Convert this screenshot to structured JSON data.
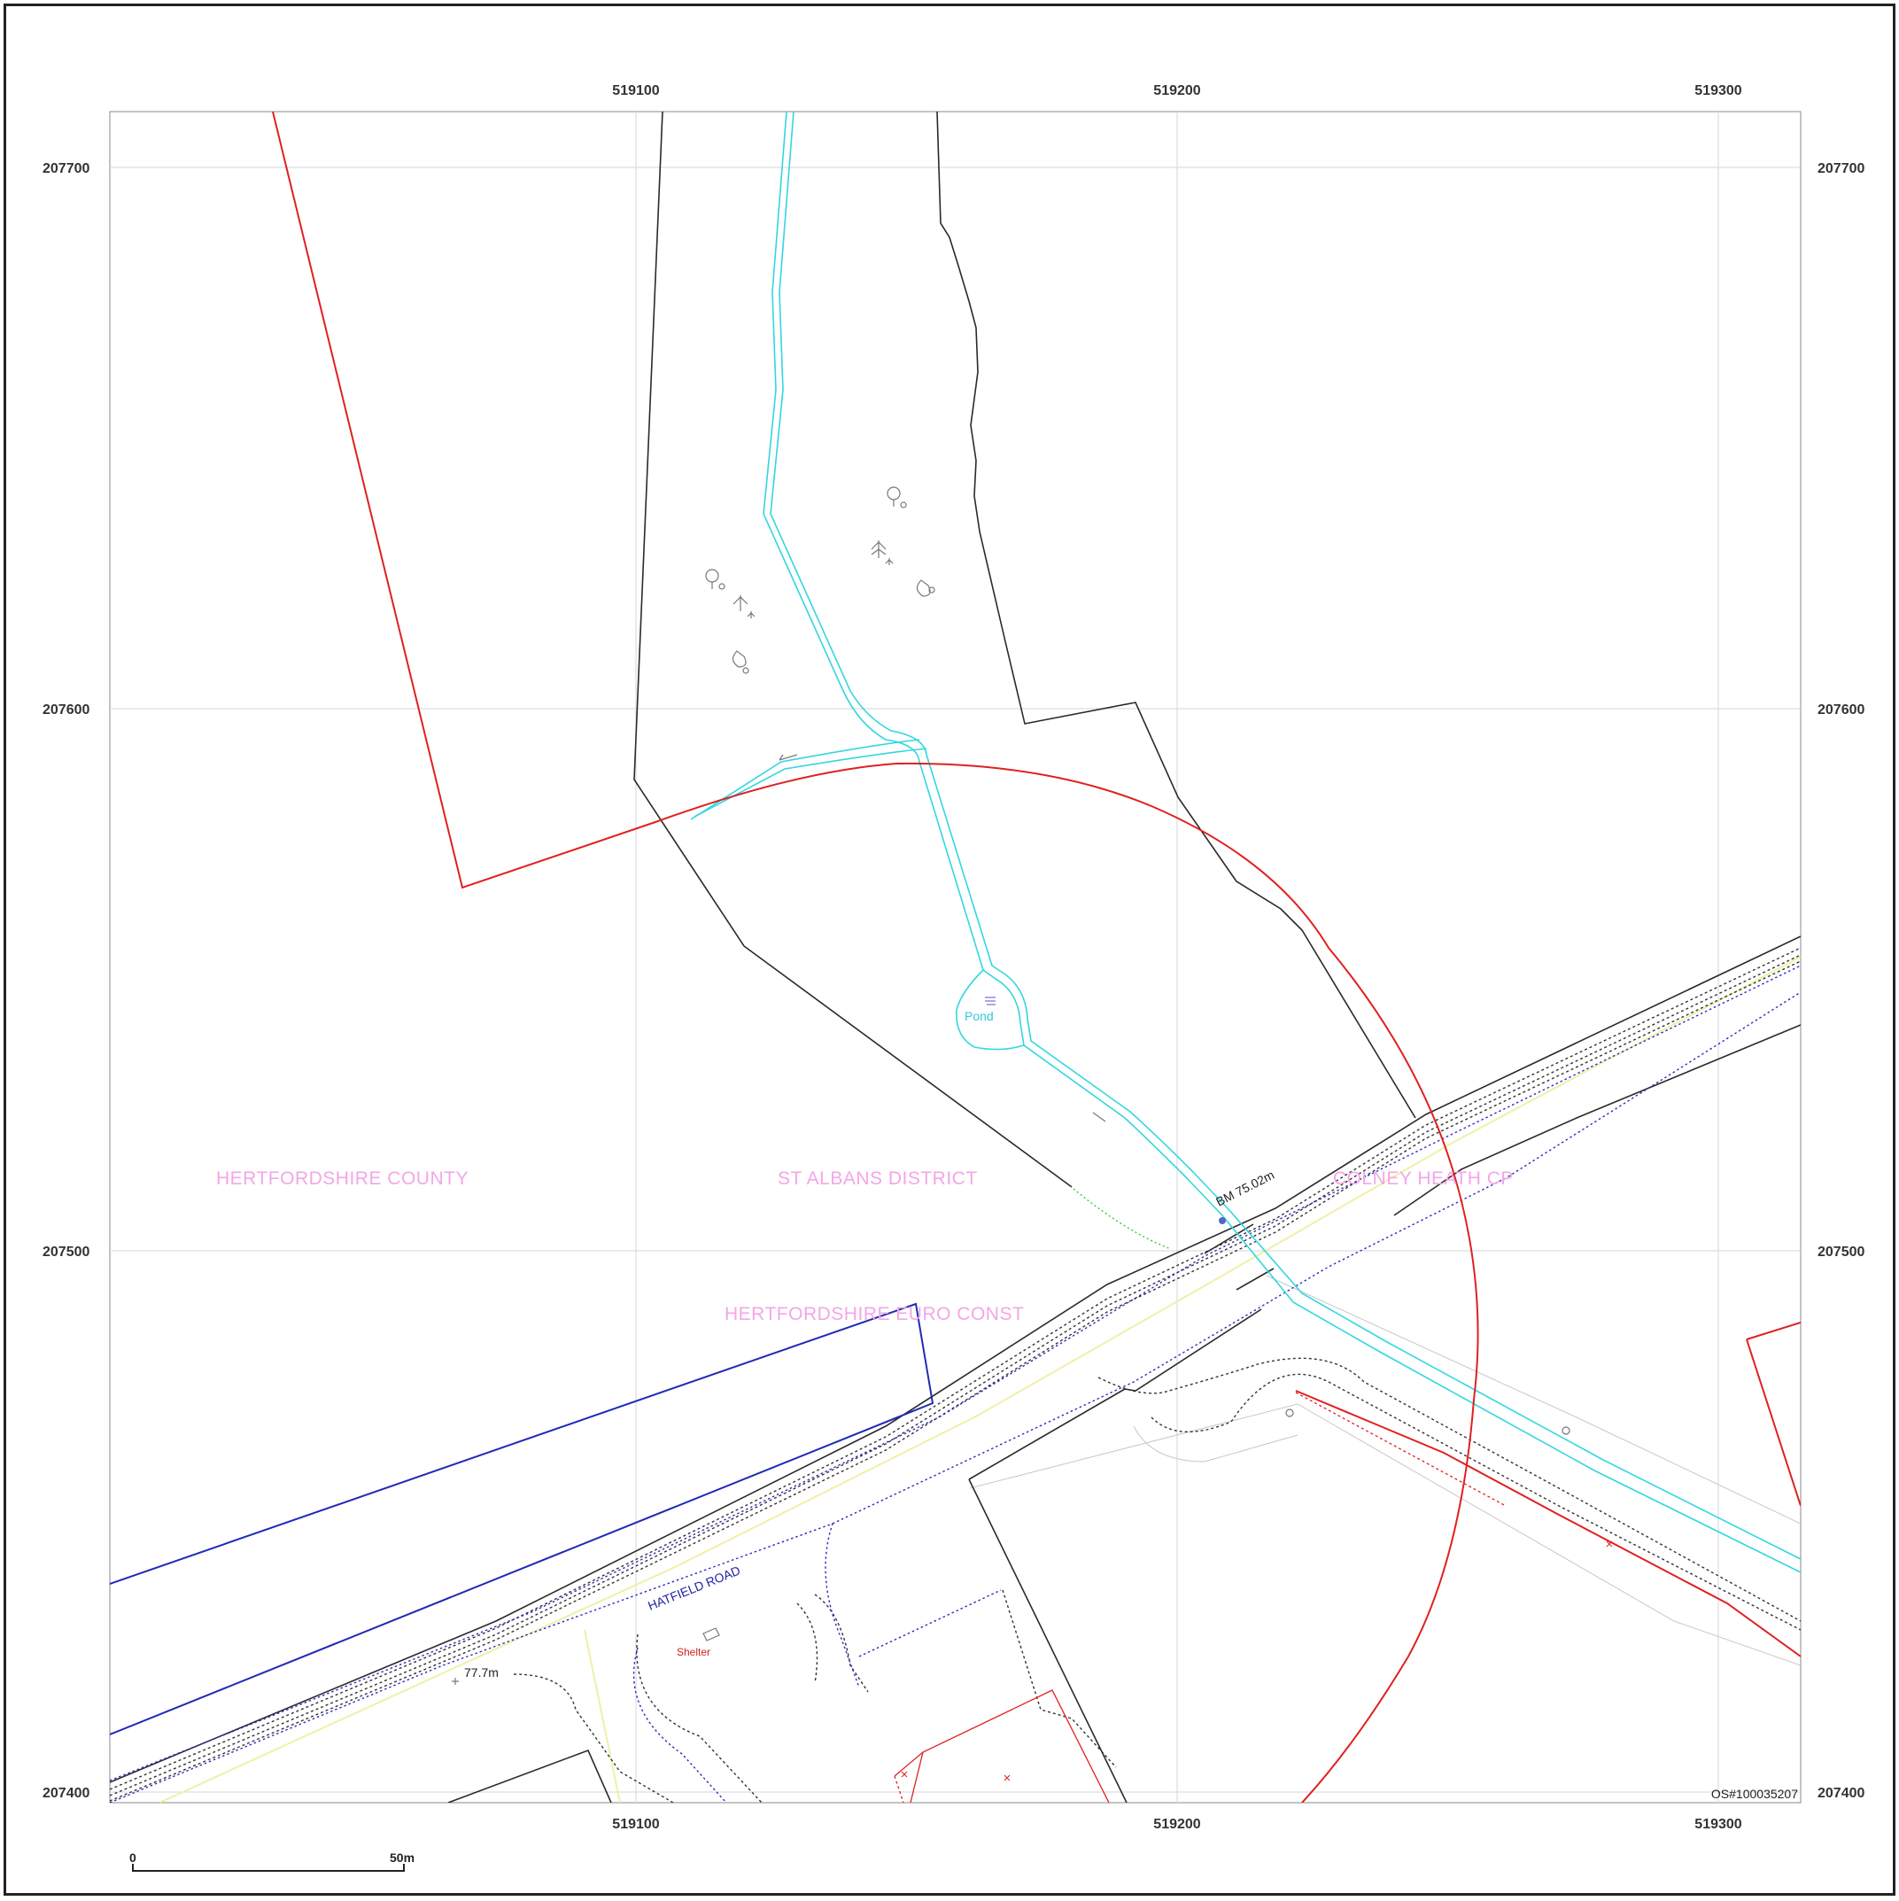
{
  "map": {
    "grid": {
      "eastings": [
        "519100",
        "519200",
        "519300"
      ],
      "northings": [
        "207700",
        "207600",
        "207500",
        "207400"
      ]
    },
    "admin_labels": {
      "county": "HERTFORDSHIRE COUNTY",
      "district": "ST ALBANS DISTRICT",
      "parish": "COLNEY HEATH CP",
      "euro_const": "HERTFORDSHIRE EURO CONST"
    },
    "features": {
      "pond": "Pond",
      "road": "HATFIELD ROAD",
      "shelter": "Shelter",
      "benchmark": "BM 75.02m",
      "spot_height": "77.7m"
    },
    "copyright": "OS#100035207",
    "scale_bar": {
      "start": "0",
      "end": "50m"
    },
    "colors": {
      "site_boundary": "#e02020",
      "water": "#33d6e0",
      "road_blue": "#2222aa",
      "admin_text": "#f3a6e6",
      "grid": "#d0d0d8"
    }
  }
}
